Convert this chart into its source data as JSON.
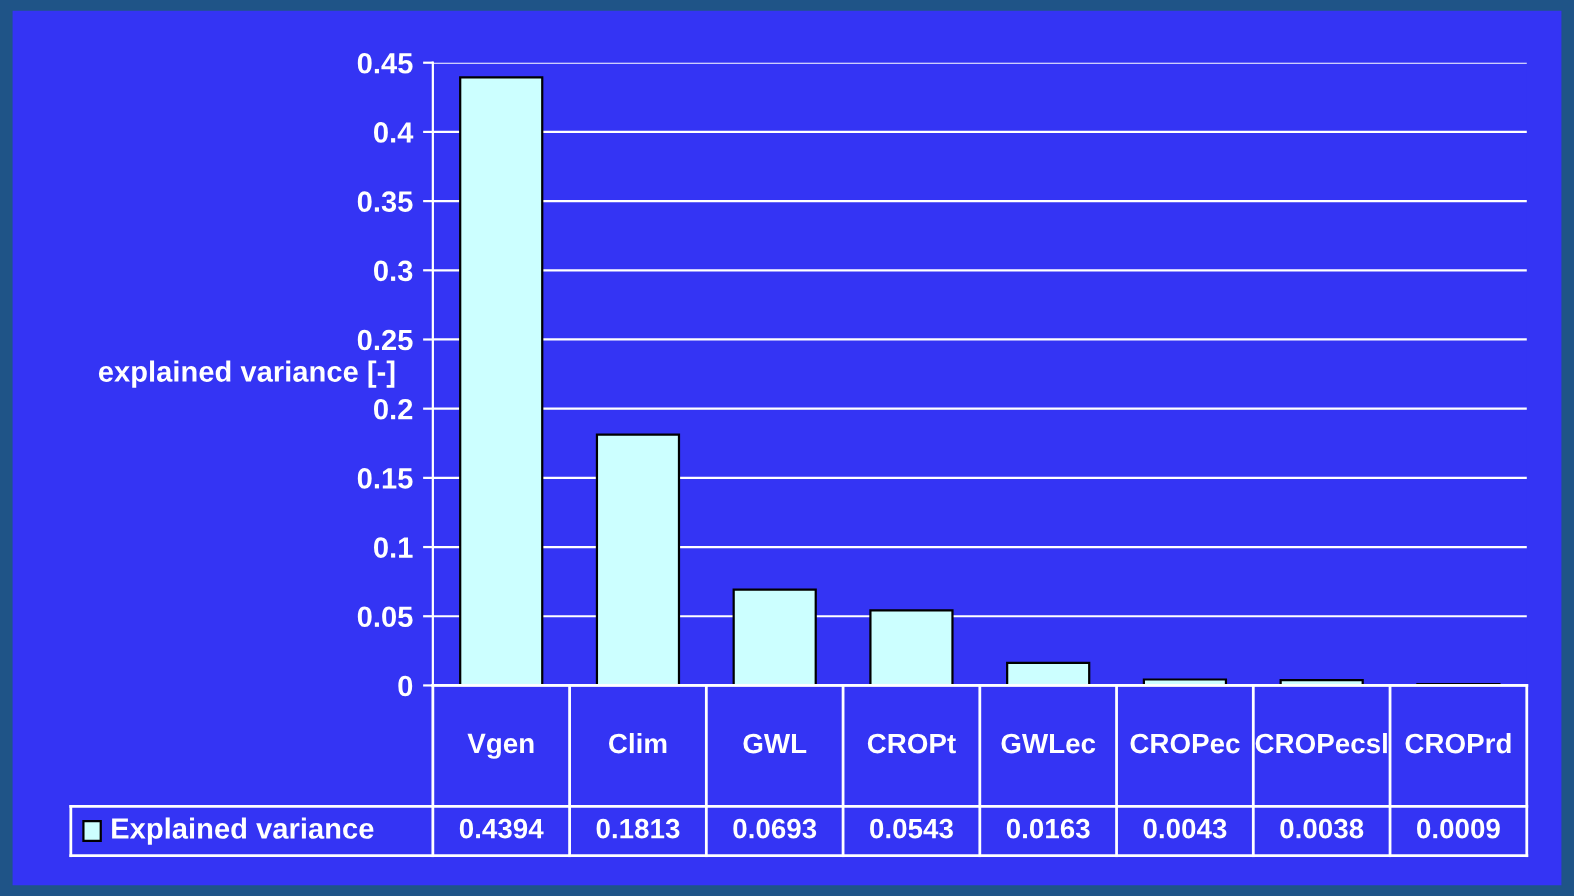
{
  "chart_data": {
    "type": "bar",
    "ylabel": "explained variance [-]",
    "categories": [
      "Vgen",
      "Clim",
      "GWL",
      "CROPt",
      "GWLec",
      "CROPec",
      "CROPecsl",
      "CROPrd"
    ],
    "series": [
      {
        "name": "Explained variance",
        "color": "#ccffff",
        "values": [
          0.4394,
          0.1813,
          0.0693,
          0.0543,
          0.0163,
          0.0043,
          0.0038,
          0.0009
        ]
      }
    ],
    "ylim": [
      0,
      0.45
    ],
    "yticks": [
      0,
      0.05,
      0.1,
      0.15,
      0.2,
      0.25,
      0.3,
      0.35,
      0.4,
      0.45
    ],
    "grid": "y",
    "data_labels": true,
    "legend": "bottom left"
  }
}
